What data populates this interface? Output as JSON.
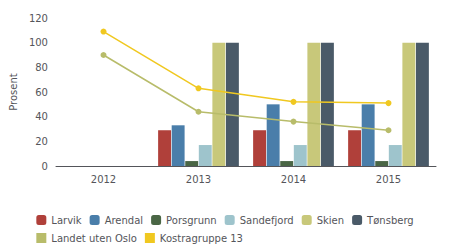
{
  "chart_data": {
    "type": "bar",
    "categories": [
      "2012",
      "2013",
      "2014",
      "2015"
    ],
    "ylabel": "Prosent",
    "ylim": [
      0,
      120
    ],
    "yticks": [
      0,
      20,
      40,
      60,
      80,
      100,
      120
    ],
    "grid": false,
    "legend": "bottom",
    "series": [
      {
        "name": "Larvik",
        "type": "bar",
        "color": "#b0403a",
        "values": [
          0,
          29,
          29,
          29
        ]
      },
      {
        "name": "Arendal",
        "type": "bar",
        "color": "#4a7eaa",
        "values": [
          0,
          33,
          50,
          50
        ]
      },
      {
        "name": "Porsgrunn",
        "type": "bar",
        "color": "#4a6645",
        "values": [
          0,
          4,
          4,
          4
        ]
      },
      {
        "name": "Sandefjord",
        "type": "bar",
        "color": "#9ec4cc",
        "values": [
          0,
          17,
          17,
          17
        ]
      },
      {
        "name": "Skien",
        "type": "bar",
        "color": "#c8c87a",
        "values": [
          0,
          100,
          100,
          100
        ]
      },
      {
        "name": "Tønsberg",
        "type": "bar",
        "color": "#4a5a68",
        "values": [
          0,
          100,
          100,
          100
        ]
      },
      {
        "name": "Landet uten Oslo",
        "type": "line",
        "color": "#b8bc6a",
        "marker": "circle",
        "line_style": "solid",
        "values": [
          90,
          44,
          36,
          29
        ]
      },
      {
        "name": "Kostragruppe 13",
        "type": "line",
        "color": "#f0c820",
        "marker": "circle",
        "line_style": "solid",
        "values": [
          109,
          63,
          52,
          51
        ]
      }
    ]
  }
}
